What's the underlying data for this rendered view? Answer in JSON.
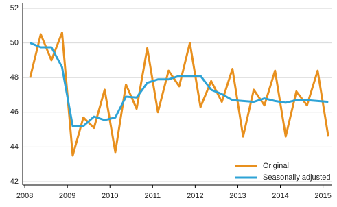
{
  "chart_data": {
    "type": "line",
    "x": [
      2008.125,
      2008.375,
      2008.625,
      2008.875,
      2009.125,
      2009.375,
      2009.625,
      2009.875,
      2010.125,
      2010.375,
      2010.625,
      2010.875,
      2011.125,
      2011.375,
      2011.625,
      2011.875,
      2012.125,
      2012.375,
      2012.625,
      2012.875,
      2013.125,
      2013.375,
      2013.625,
      2013.875,
      2014.125,
      2014.375,
      2014.625,
      2014.875,
      2015.125
    ],
    "series": [
      {
        "name": "Original",
        "color": "#e8901e",
        "values": [
          48.0,
          50.5,
          49.0,
          50.6,
          43.5,
          45.7,
          45.1,
          47.3,
          43.7,
          47.6,
          46.2,
          49.7,
          46.0,
          48.4,
          47.5,
          50.0,
          46.3,
          47.8,
          46.6,
          48.5,
          44.6,
          47.3,
          46.4,
          48.4,
          44.6,
          47.2,
          46.4,
          48.4,
          44.6
        ]
      },
      {
        "name": "Seasonally adjusted",
        "color": "#2ea3d6",
        "values": [
          50.0,
          49.75,
          49.75,
          48.6,
          45.2,
          45.2,
          45.75,
          45.55,
          45.7,
          46.9,
          46.85,
          47.7,
          47.9,
          47.9,
          48.1,
          48.1,
          48.1,
          47.3,
          47.05,
          46.7,
          46.65,
          46.6,
          46.8,
          46.65,
          46.55,
          46.7,
          46.7,
          46.65,
          46.6
        ]
      }
    ],
    "xlim": [
      2007.95,
      2015.2
    ],
    "xticks": [
      2008,
      2009,
      2010,
      2011,
      2012,
      2013,
      2014,
      2015
    ],
    "ylim": [
      41.8,
      52.28
    ],
    "yticks": [
      42,
      44,
      46,
      48,
      50,
      52
    ],
    "grid": true,
    "legend": "lower right"
  }
}
